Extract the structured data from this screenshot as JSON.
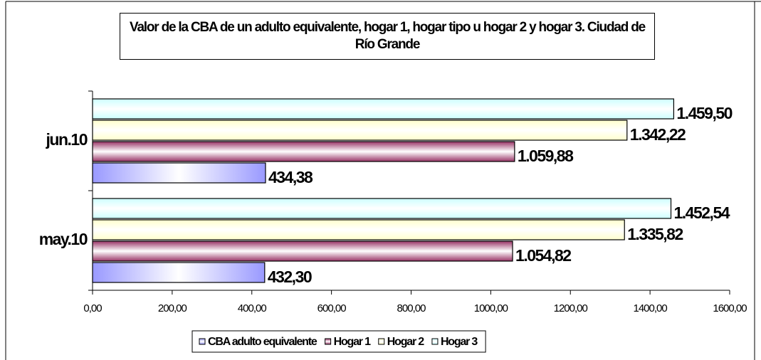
{
  "chart_data": {
    "type": "hbar",
    "title": "Valor de la CBA de un adulto equivalente, hogar 1, hogar tipo u hogar 2 y hogar 3. Ciudad de Río Grande",
    "categories": [
      "may.10",
      "jun.10"
    ],
    "series": [
      {
        "name": "CBA adulto equivalente",
        "color": "#9999ff",
        "values": [
          432.3,
          434.38
        ],
        "value_labels": [
          "432,30",
          "434,38"
        ]
      },
      {
        "name": "Hogar 1",
        "color": "#993366",
        "values": [
          1054.82,
          1059.88
        ],
        "value_labels": [
          "1.054,82",
          "1.059,88"
        ]
      },
      {
        "name": "Hogar 2",
        "color": "#ffffcc",
        "values": [
          1335.82,
          1342.22
        ],
        "value_labels": [
          "1.335,82",
          "1.342,22"
        ]
      },
      {
        "name": "Hogar 3",
        "color": "#ccffff",
        "values": [
          1452.54,
          1459.5
        ],
        "value_labels": [
          "1.452,54",
          "1.459,50"
        ]
      }
    ],
    "xlim": [
      0,
      1600
    ],
    "xticks": [
      {
        "value": 0,
        "label": "0,00"
      },
      {
        "value": 200,
        "label": "200,00"
      },
      {
        "value": 400,
        "label": "400,00"
      },
      {
        "value": 600,
        "label": "600,00"
      },
      {
        "value": 800,
        "label": "800,00"
      },
      {
        "value": 1000,
        "label": "1000,00"
      },
      {
        "value": 1200,
        "label": "1200,00"
      },
      {
        "value": 1400,
        "label": "1400,00"
      },
      {
        "value": 1600,
        "label": "1600,00"
      }
    ],
    "legend": "bottom"
  }
}
